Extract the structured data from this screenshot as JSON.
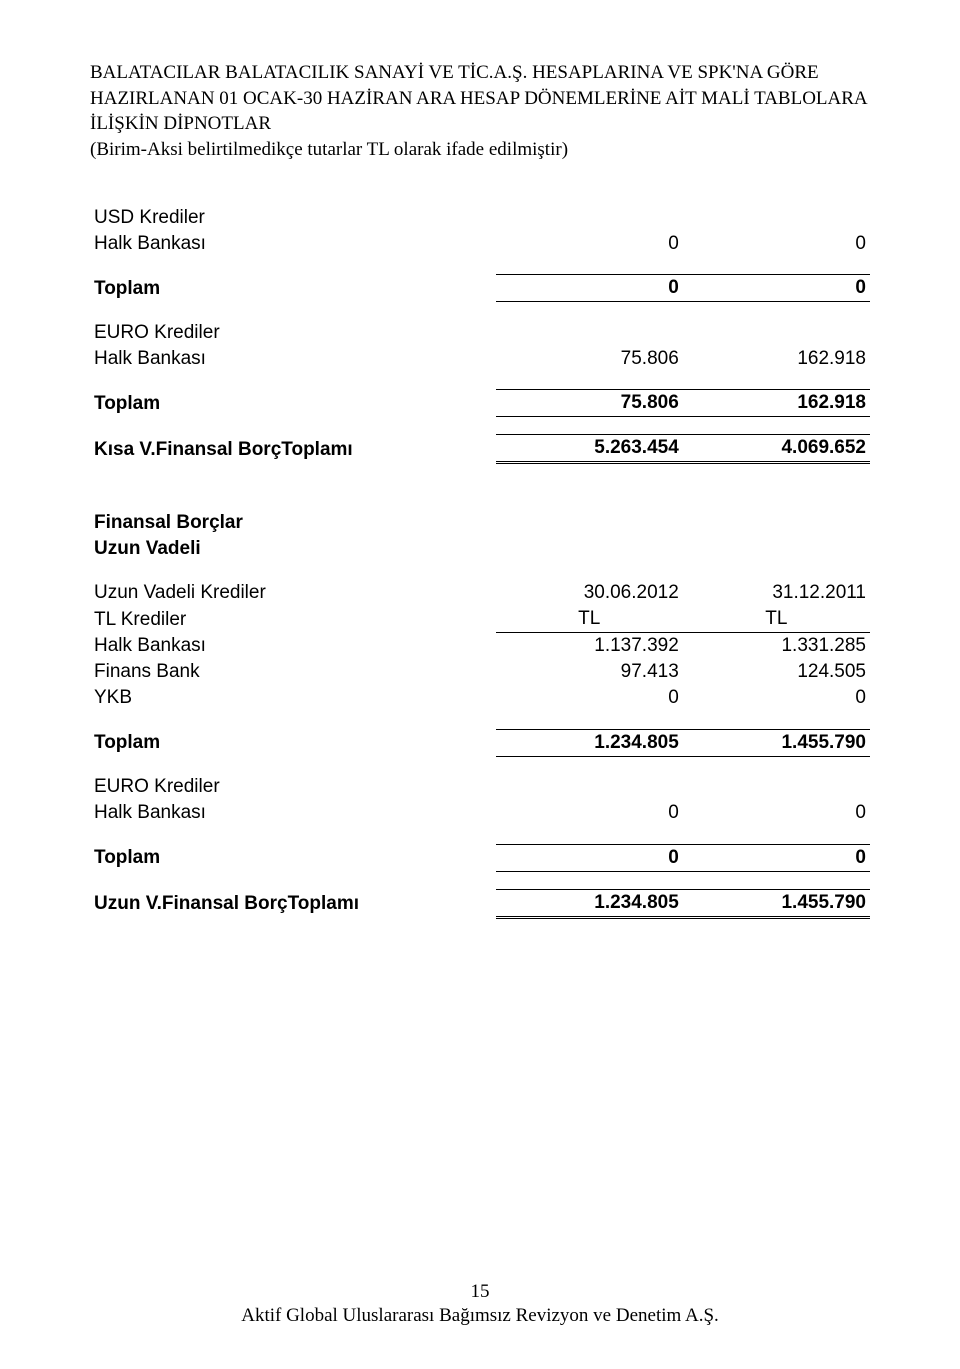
{
  "header": {
    "line1": "BALATACILAR BALATACILIK SANAYİ VE TİC.A.Ş. HESAPLARINA VE SPK'NA GÖRE HAZIRLANAN 01 OCAK-30 HAZİRAN ARA HESAP DÖNEMLERİNE AİT MALİ TABLOLARA İLİŞKİN DİPNOTLAR",
    "line2": "(Birim-Aksi belirtilmedikçe tutarlar TL olarak ifade edilmiştir)"
  },
  "section1": {
    "usd_label": "USD Krediler",
    "halk_label": "Halk Bankası",
    "halk_v1": "0",
    "halk_v2": "0",
    "toplam_label": "Toplam",
    "toplam_v1": "0",
    "toplam_v2": "0",
    "euro_label": "EURO Krediler",
    "ehalk_label": "Halk Bankası",
    "ehalk_v1": "75.806",
    "ehalk_v2": "162.918",
    "etoplam_label": "Toplam",
    "etoplam_v1": "75.806",
    "etoplam_v2": "162.918",
    "kisa_label": "Kısa V.Finansal BorçToplamı",
    "kisa_v1": "5.263.454",
    "kisa_v2": "4.069.652"
  },
  "section2": {
    "title1": "Finansal Borçlar",
    "title2": "Uzun Vadeli",
    "uzun_label": "Uzun Vadeli Krediler",
    "date1": "30.06.2012",
    "date2": "31.12.2011",
    "tl_label": "TL Krediler",
    "tl_h1": "TL",
    "tl_h2": "TL",
    "halk_label": "Halk Bankası",
    "halk_v1": "1.137.392",
    "halk_v2": "1.331.285",
    "finans_label": "Finans Bank",
    "finans_v1": "97.413",
    "finans_v2": "124.505",
    "ykb_label": "YKB",
    "ykb_v1": "0",
    "ykb_v2": "0",
    "toplam_label": "Toplam",
    "toplam_v1": "1.234.805",
    "toplam_v2": "1.455.790",
    "euro_label": "EURO Krediler",
    "ehalk_label": "Halk Bankası",
    "ehalk_v1": "0",
    "ehalk_v2": "0",
    "etoplam_label": "Toplam",
    "etoplam_v1": "0",
    "etoplam_v2": "0",
    "uzun_total_label": "Uzun V.Finansal BorçToplamı",
    "uzun_total_v1": "1.234.805",
    "uzun_total_v2": "1.455.790"
  },
  "footer": {
    "page_num": "15",
    "company": "Aktif Global Uluslararası Bağımsız Revizyon ve Denetim A.Ş."
  }
}
